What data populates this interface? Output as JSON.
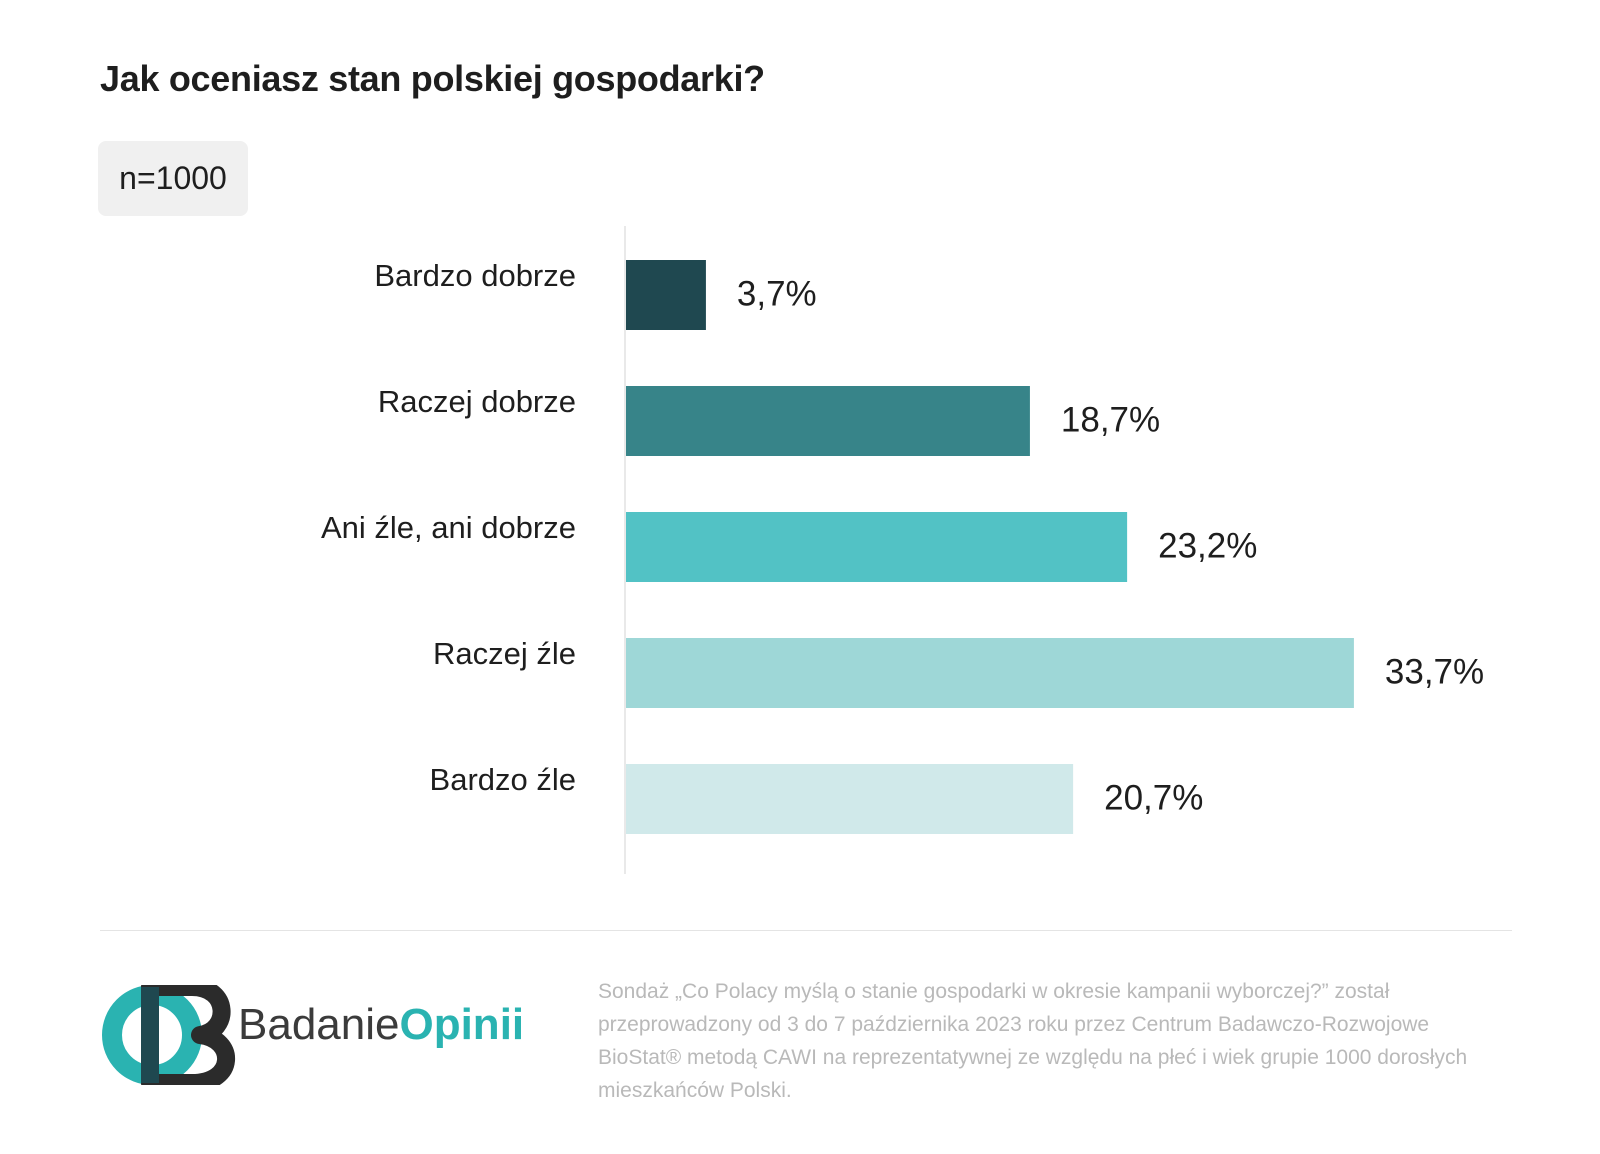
{
  "header": {
    "title": "Jak oceniasz stan polskiej gospodarki?",
    "sample": "n=1000"
  },
  "chart_data": {
    "type": "bar",
    "orientation": "horizontal",
    "title": "Jak oceniasz stan polskiej gospodarki?",
    "categories": [
      "Bardzo dobrze",
      "Raczej dobrze",
      "Ani źle, ani dobrze",
      "Raczej źle",
      "Bardzo źle"
    ],
    "values": [
      3.7,
      18.7,
      23.2,
      33.7,
      20.7
    ],
    "value_labels": [
      "3,7%",
      "18,7%",
      "23,2%",
      "33,7%",
      "20,7%"
    ],
    "colors": [
      "#1f4850",
      "#378489",
      "#52c2c5",
      "#9ed7d7",
      "#d0e9ea"
    ],
    "xlabel": "",
    "ylabel": "",
    "grid": false,
    "legend": "none"
  },
  "logo": {
    "word_light": "Badanie",
    "word_bold": "Opinii",
    "colors": {
      "teal": "#2ab3b1",
      "dark": "#2b2b2b"
    }
  },
  "footer": {
    "note": "Sondaż „Co Polacy myślą o stanie gospodarki w okresie kampanii wyborczej?” został przeprowadzony od 3 do 7 października 2023 roku przez Centrum Badawczo-Rozwojowe BioStat® metodą CAWI na reprezentatywnej ze względu na płeć i wiek grupie 1000 dorosłych mieszkańców Polski."
  }
}
